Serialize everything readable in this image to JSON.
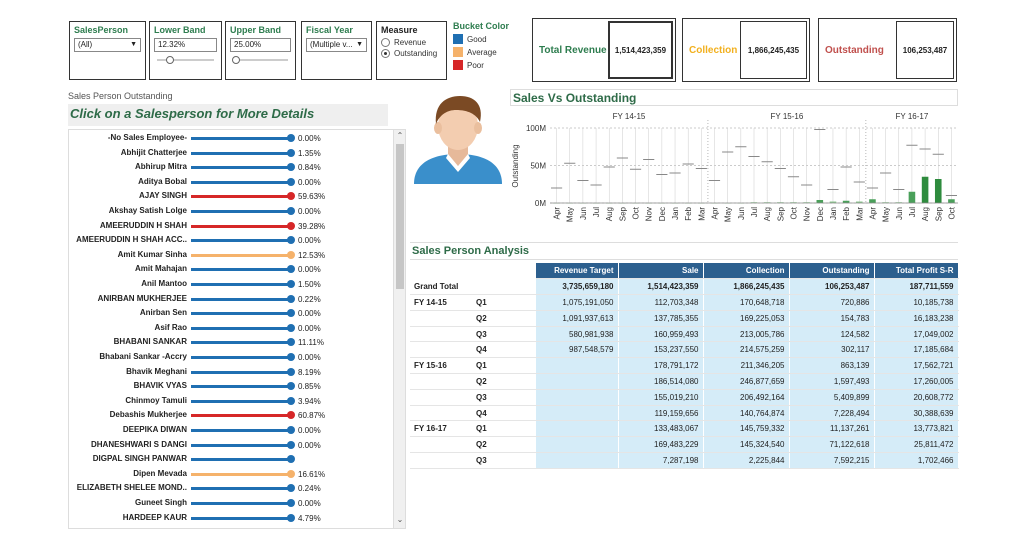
{
  "filters": {
    "salesperson": {
      "title": "SalesPerson",
      "value": "(All)"
    },
    "lower_band": {
      "title": "Lower Band",
      "value": "12.32%"
    },
    "upper_band": {
      "title": "Upper Band",
      "value": "25.00%"
    },
    "fiscal_year": {
      "title": "Fiscal Year",
      "value": "(Multiple v..."
    },
    "measure": {
      "title": "Measure",
      "options": [
        "Revenue",
        "Outstanding"
      ],
      "selected": "Outstanding"
    },
    "bucket_color": {
      "title": "Bucket Color",
      "items": [
        {
          "label": "Good",
          "color": "#1f6fb2"
        },
        {
          "label": "Average",
          "color": "#f5b26b"
        },
        {
          "label": "Poor",
          "color": "#d62728"
        }
      ]
    }
  },
  "kpis": {
    "revenue": {
      "label": "Total Revenue",
      "value": "1,514,423,359",
      "color": "#2e7d4f"
    },
    "collection": {
      "label": "Collection",
      "value": "1,866,245,435",
      "color": "#f2b01e"
    },
    "outstanding": {
      "label": "Outstanding",
      "value": "106,253,487",
      "color": "#c0504d"
    }
  },
  "left_panel": {
    "subtitle": "Sales Person Outstanding",
    "header": "Click on a Salesperson for More Details",
    "rows": [
      {
        "name": "-No Sales Employee-",
        "pct": "0.00%",
        "bucket": "good"
      },
      {
        "name": "Abhijit Chatterjee",
        "pct": "1.35%",
        "bucket": "good"
      },
      {
        "name": "Abhirup Mitra",
        "pct": "0.84%",
        "bucket": "good"
      },
      {
        "name": "Aditya Bobal",
        "pct": "0.00%",
        "bucket": "good"
      },
      {
        "name": "AJAY SINGH",
        "pct": "59.63%",
        "bucket": "poor"
      },
      {
        "name": "Akshay Satish Lolge",
        "pct": "0.00%",
        "bucket": "good"
      },
      {
        "name": "AMEERUDDIN H SHAH",
        "pct": "39.28%",
        "bucket": "poor"
      },
      {
        "name": "AMEERUDDIN H SHAH  ACC..",
        "pct": "0.00%",
        "bucket": "good"
      },
      {
        "name": "Amit Kumar Sinha",
        "pct": "12.53%",
        "bucket": "average"
      },
      {
        "name": "Amit Mahajan",
        "pct": "0.00%",
        "bucket": "good"
      },
      {
        "name": "Anil Mantoo",
        "pct": "1.50%",
        "bucket": "good"
      },
      {
        "name": "ANIRBAN MUKHERJEE",
        "pct": "0.22%",
        "bucket": "good"
      },
      {
        "name": "Anirban Sen",
        "pct": "0.00%",
        "bucket": "good"
      },
      {
        "name": "Asif Rao",
        "pct": "0.00%",
        "bucket": "good"
      },
      {
        "name": "BHABANI SANKAR",
        "pct": "11.11%",
        "bucket": "good"
      },
      {
        "name": "Bhabani Sankar -Accry",
        "pct": "0.00%",
        "bucket": "good"
      },
      {
        "name": "Bhavik Meghani",
        "pct": "8.19%",
        "bucket": "good"
      },
      {
        "name": "BHAVIK  VYAS",
        "pct": "0.85%",
        "bucket": "good"
      },
      {
        "name": "Chinmoy Tamuli",
        "pct": "3.94%",
        "bucket": "good"
      },
      {
        "name": "Debashis Mukherjee",
        "pct": "60.87%",
        "bucket": "poor"
      },
      {
        "name": "DEEPIKA DIWAN",
        "pct": "0.00%",
        "bucket": "good"
      },
      {
        "name": "DHANESHWARI S DANGI",
        "pct": "0.00%",
        "bucket": "good"
      },
      {
        "name": "DIGPAL SINGH PANWAR",
        "pct": "",
        "bucket": "good"
      },
      {
        "name": "Dipen Mevada",
        "pct": "16.61%",
        "bucket": "average"
      },
      {
        "name": "ELIZABETH SHELEE MOND..",
        "pct": "0.24%",
        "bucket": "good"
      },
      {
        "name": "Guneet Singh",
        "pct": "0.00%",
        "bucket": "good"
      },
      {
        "name": "HARDEEP KAUR",
        "pct": "4.79%",
        "bucket": "good"
      }
    ]
  },
  "bucket_colors": {
    "good": "#1f6fb2",
    "average": "#f5b26b",
    "poor": "#d62728"
  },
  "chart_data": {
    "type": "bar",
    "title": "Sales Vs Outstanding",
    "ylabel": "Outstanding",
    "ylim": [
      0,
      100
    ],
    "yticks": [
      "100M",
      "50M",
      "0M"
    ],
    "groups": [
      "FY 14-15",
      "FY 15-16",
      "FY 16-17"
    ],
    "categories": [
      "Apr",
      "May",
      "Jun",
      "Jul",
      "Aug",
      "Sep",
      "Oct",
      "Nov",
      "Dec",
      "Jan",
      "Feb",
      "Mar",
      "Apr",
      "May",
      "Jun",
      "Jul",
      "Aug",
      "Sep",
      "Oct",
      "Nov",
      "Dec",
      "Jan",
      "Feb",
      "Mar",
      "Apr",
      "May",
      "Jun",
      "Jul",
      "Aug",
      "Sep",
      "Oct"
    ],
    "series": [
      {
        "values": [
          20,
          53,
          30,
          24,
          48,
          60,
          45,
          58,
          38,
          40,
          52,
          46,
          30,
          68,
          75,
          62,
          55,
          46,
          35,
          24,
          98,
          18,
          48,
          28,
          20,
          40,
          18,
          77,
          72,
          65,
          10
        ]
      },
      {
        "values": [
          0,
          0,
          0,
          0,
          0,
          0,
          0,
          0,
          0,
          0,
          0,
          0,
          0,
          0,
          0,
          1,
          1,
          1,
          1,
          1,
          4,
          2,
          3,
          2,
          5,
          1,
          1,
          15,
          35,
          32,
          5
        ]
      }
    ]
  },
  "table": {
    "title": "Sales Person Analysis",
    "columns": [
      "Revenue Target",
      "Sale",
      "Collection",
      "Outstanding",
      "Total Profit S-R"
    ],
    "grand_total": {
      "label": "Grand Total",
      "values": [
        "3,735,659,180",
        "1,514,423,359",
        "1,866,245,435",
        "106,253,487",
        "187,711,559"
      ]
    },
    "rows": [
      {
        "fy": "FY 14-15",
        "q": "Q1",
        "values": [
          "1,075,191,050",
          "112,703,348",
          "170,648,718",
          "720,886",
          "10,185,738"
        ]
      },
      {
        "fy": "",
        "q": "Q2",
        "values": [
          "1,091,937,613",
          "137,785,355",
          "169,225,053",
          "154,783",
          "16,183,238"
        ]
      },
      {
        "fy": "",
        "q": "Q3",
        "values": [
          "580,981,938",
          "160,959,493",
          "213,005,786",
          "124,582",
          "17,049,002"
        ]
      },
      {
        "fy": "",
        "q": "Q4",
        "values": [
          "987,548,579",
          "153,237,550",
          "214,575,259",
          "302,117",
          "17,185,684"
        ]
      },
      {
        "fy": "FY 15-16",
        "q": "Q1",
        "values": [
          "",
          "178,791,172",
          "211,346,205",
          "863,139",
          "17,562,721"
        ]
      },
      {
        "fy": "",
        "q": "Q2",
        "values": [
          "",
          "186,514,080",
          "246,877,659",
          "1,597,493",
          "17,260,005"
        ]
      },
      {
        "fy": "",
        "q": "Q3",
        "values": [
          "",
          "155,019,210",
          "206,492,164",
          "5,409,899",
          "20,608,772"
        ]
      },
      {
        "fy": "",
        "q": "Q4",
        "values": [
          "",
          "119,159,656",
          "140,764,874",
          "7,228,494",
          "30,388,639"
        ]
      },
      {
        "fy": "FY 16-17",
        "q": "Q1",
        "values": [
          "",
          "133,483,067",
          "145,759,332",
          "11,137,261",
          "13,773,821"
        ]
      },
      {
        "fy": "",
        "q": "Q2",
        "values": [
          "",
          "169,483,229",
          "145,324,540",
          "71,122,618",
          "25,811,472"
        ]
      },
      {
        "fy": "",
        "q": "Q3",
        "values": [
          "",
          "7,287,198",
          "2,225,844",
          "7,592,215",
          "1,702,466"
        ]
      }
    ]
  }
}
